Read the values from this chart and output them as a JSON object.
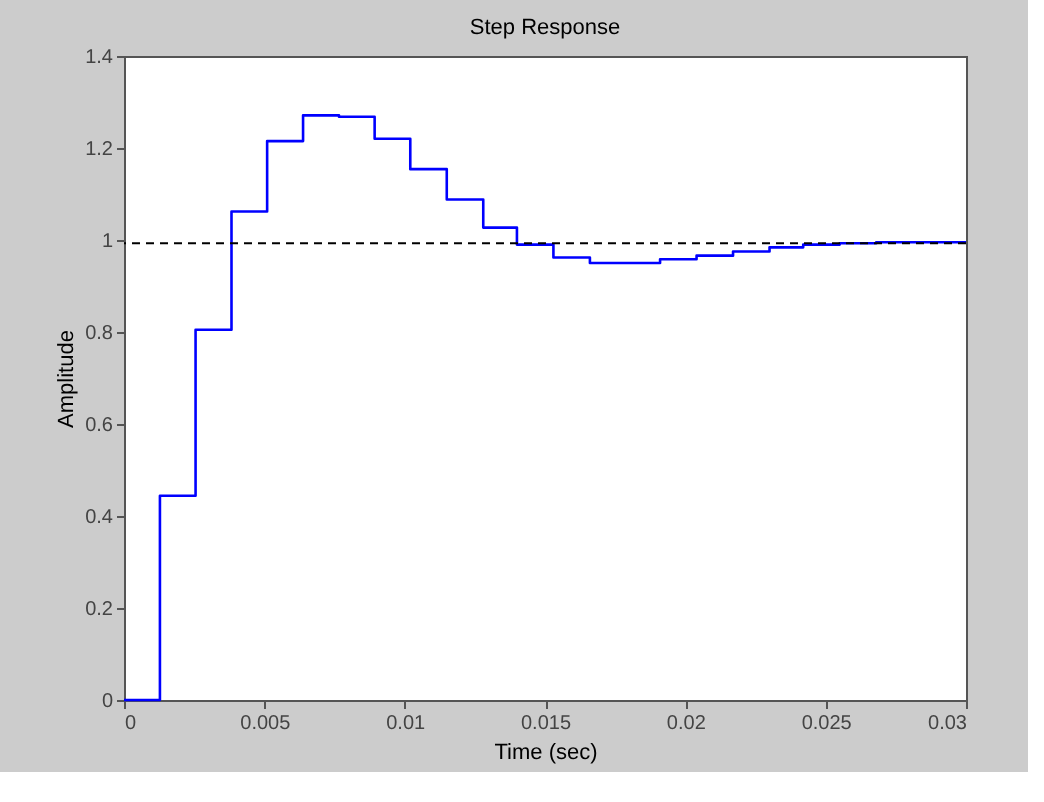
{
  "chart_data": {
    "type": "step",
    "title": "Step Response",
    "xlabel": "Time (sec)",
    "ylabel": "Amplitude",
    "x": [
      0,
      0.00128,
      0.00255,
      0.00383,
      0.0051,
      0.00638,
      0.00766,
      0.00893,
      0.0102,
      0.0115,
      0.0128,
      0.014,
      0.0153,
      0.0166,
      0.0179,
      0.0191,
      0.0204,
      0.0217,
      0.023,
      0.0242,
      0.0255,
      0.0268,
      0.0281,
      0.03
    ],
    "series": [
      {
        "color": "#0000ff",
        "values": [
          0,
          0.444,
          0.805,
          1.062,
          1.215,
          1.271,
          1.268,
          1.22,
          1.154,
          1.088,
          1.027,
          0.99,
          0.962,
          0.95,
          0.95,
          0.958,
          0.966,
          0.975,
          0.984,
          0.99,
          0.993,
          0.995,
          0.995,
          0.995
        ]
      }
    ],
    "ref_lines": [
      {
        "axis": "y",
        "value": 0.993,
        "color": "#000000",
        "line_style": "dashed"
      }
    ],
    "xlim": [
      0,
      0.03
    ],
    "ylim": [
      0,
      1.4
    ],
    "xticks": [
      0,
      0.005,
      0.01,
      0.015,
      0.02,
      0.025,
      0.03
    ],
    "yticks": [
      0,
      0.2,
      0.4,
      0.6,
      0.8,
      1,
      1.2,
      1.4
    ],
    "grid": false,
    "marker": "none",
    "line_style": "solid"
  }
}
